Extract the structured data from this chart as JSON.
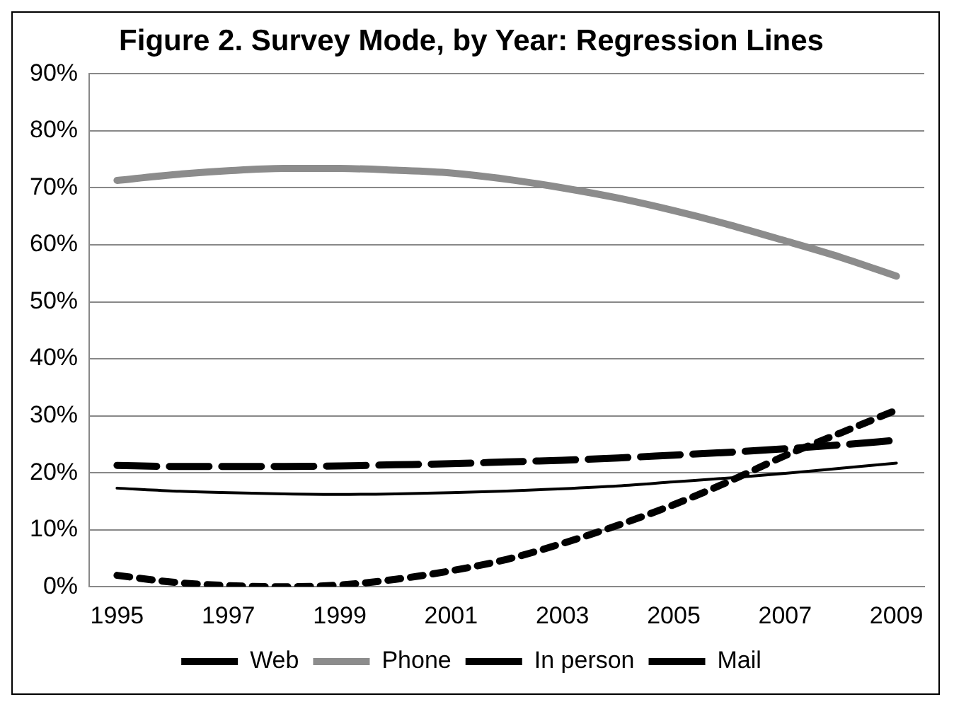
{
  "chart_data": {
    "type": "line",
    "title": "Figure 2. Survey Mode, by Year: Regression Lines",
    "categories": [
      "1995",
      null,
      "1997",
      null,
      "1999",
      null,
      "2001",
      null,
      "2003",
      null,
      "2005",
      null,
      "2007",
      null,
      "2009"
    ],
    "series": [
      {
        "name": "Web",
        "color": "#000000",
        "line_style": "dotted",
        "values": [
          2,
          0.8,
          0.2,
          0,
          0.3,
          1.3,
          2.8,
          4.8,
          7.6,
          10.8,
          14.4,
          18.5,
          23,
          27,
          31
        ]
      },
      {
        "name": "Phone",
        "color": "#8c8c8c",
        "line_style": "solid",
        "values": [
          71.3,
          72.3,
          73,
          73.4,
          73.4,
          73.1,
          72.6,
          71.5,
          70,
          68.2,
          66,
          63.5,
          60.7,
          57.8,
          54.5
        ]
      },
      {
        "name": "In person",
        "color": "#000000",
        "line_style": "dashed",
        "values": [
          21.3,
          21.1,
          21.1,
          21.1,
          21.2,
          21.4,
          21.6,
          21.9,
          22.2,
          22.6,
          23.1,
          23.6,
          24.2,
          24.9,
          25.7
        ]
      },
      {
        "name": "Mail",
        "color": "#000000",
        "line_style": "solid",
        "values": [
          17.3,
          16.8,
          16.5,
          16.3,
          16.2,
          16.3,
          16.5,
          16.8,
          17.2,
          17.7,
          18.4,
          19.1,
          19.9,
          20.8,
          21.7
        ]
      }
    ],
    "ylim": [
      0,
      90
    ],
    "yticks": [
      {
        "value": 0,
        "label": "0%"
      },
      {
        "value": 10,
        "label": "10%"
      },
      {
        "value": 20,
        "label": "20%"
      },
      {
        "value": 30,
        "label": "30%"
      },
      {
        "value": 40,
        "label": "40%"
      },
      {
        "value": 50,
        "label": "50%"
      },
      {
        "value": 60,
        "label": "60%"
      },
      {
        "value": 70,
        "label": "70%"
      },
      {
        "value": 80,
        "label": "80%"
      },
      {
        "value": 90,
        "label": "90%"
      }
    ],
    "grid": "y",
    "legend": "bottom",
    "marker": "none"
  }
}
